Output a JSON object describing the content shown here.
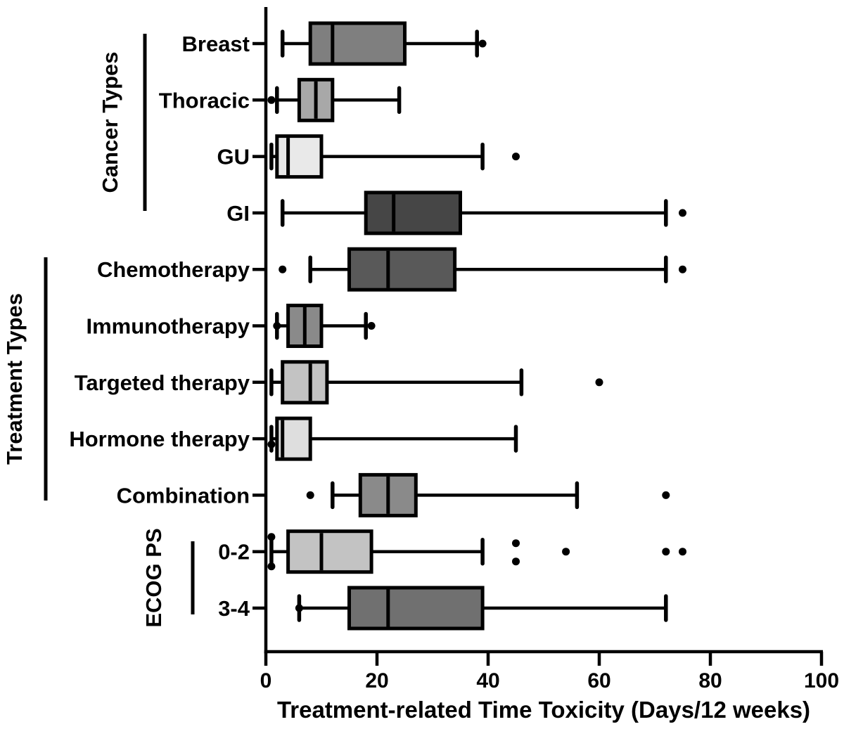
{
  "figure": {
    "background": "#ffffff",
    "ink_color": "#000000"
  },
  "chart_data": {
    "type": "boxplot",
    "orientation": "horizontal",
    "xlabel": "Treatment-related Time Toxicity (Days/12 weeks)",
    "xlim": [
      0,
      100
    ],
    "xticks": [
      0,
      20,
      40,
      60,
      80,
      100
    ],
    "grid": false,
    "legend": false,
    "groups": [
      {
        "label": "Cancer Types",
        "row_indexes": [
          0,
          1,
          2,
          3
        ]
      },
      {
        "label": "Treatment Types",
        "row_indexes": [
          4,
          5,
          6,
          7,
          8
        ]
      },
      {
        "label": "ECOG PS",
        "row_indexes": [
          9,
          10
        ]
      }
    ],
    "rows": [
      {
        "label": "Breast",
        "whisker_low": 3,
        "q1": 8,
        "median": 12,
        "q3": 25,
        "whisker_high": 38,
        "outliers": [
          39
        ],
        "fill": "#7f7f7f"
      },
      {
        "label": "Thoracic",
        "whisker_low": 2,
        "q1": 6,
        "median": 9,
        "q3": 12,
        "whisker_high": 24,
        "outliers": [
          1
        ],
        "fill": "#a8a8a8"
      },
      {
        "label": "GU",
        "whisker_low": 1,
        "q1": 2,
        "median": 4,
        "q3": 10,
        "whisker_high": 39,
        "outliers": [
          45
        ],
        "fill": "#e9e9e9"
      },
      {
        "label": "GI",
        "whisker_low": 3,
        "q1": 18,
        "median": 23,
        "q3": 35,
        "whisker_high": 72,
        "outliers": [
          75
        ],
        "fill": "#464646"
      },
      {
        "label": "Chemotherapy",
        "whisker_low": 8,
        "q1": 15,
        "median": 22,
        "q3": 34,
        "whisker_high": 72,
        "outliers": [
          3,
          75
        ],
        "fill": "#595959"
      },
      {
        "label": "Immunotherapy",
        "whisker_low": 2,
        "q1": 4,
        "median": 7,
        "q3": 10,
        "whisker_high": 18,
        "outliers": [
          2,
          19
        ],
        "fill": "#8a8a8a"
      },
      {
        "label": "Targeted therapy",
        "whisker_low": 1,
        "q1": 3,
        "median": 8,
        "q3": 11,
        "whisker_high": 46,
        "outliers": [
          60
        ],
        "fill": "#c3c3c3"
      },
      {
        "label": "Hormone therapy",
        "whisker_low": 1,
        "q1": 2,
        "median": 3,
        "q3": 8,
        "whisker_high": 45,
        "outliers": [
          1
        ],
        "fill": "#dedede"
      },
      {
        "label": "Combination",
        "whisker_low": 12,
        "q1": 17,
        "median": 22,
        "q3": 27,
        "whisker_high": 56,
        "outliers": [
          8,
          72
        ],
        "fill": "#8a8a8a"
      },
      {
        "label": "0-2",
        "whisker_low": 1,
        "q1": 4,
        "median": 10,
        "q3": 19,
        "whisker_high": 39,
        "outliers": [
          1,
          1,
          45,
          45,
          54,
          72,
          75
        ],
        "fill": "#c3c3c3"
      },
      {
        "label": "3-4",
        "whisker_low": 6,
        "q1": 15,
        "median": 22,
        "q3": 39,
        "whisker_high": 72,
        "outliers": [
          6
        ],
        "fill": "#707070"
      }
    ]
  }
}
